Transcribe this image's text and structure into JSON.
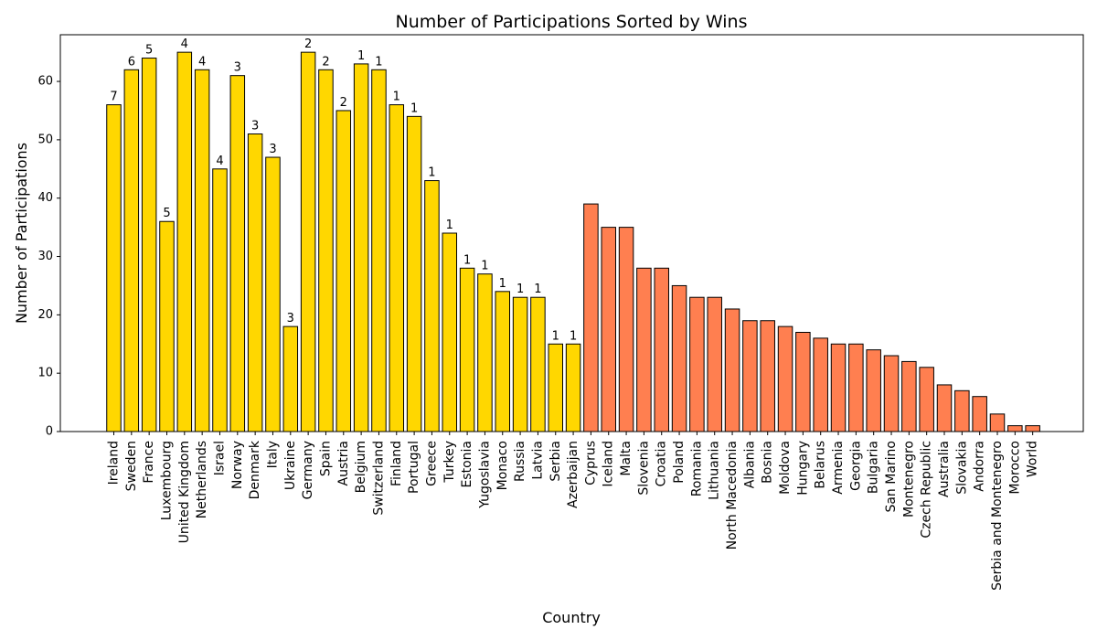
{
  "chart_data": {
    "type": "bar",
    "title": "Number of Participations Sorted by Wins",
    "xlabel": "Country",
    "ylabel": "Number of Participations",
    "ylim": [
      0,
      68
    ],
    "yticks": [
      0,
      10,
      20,
      30,
      40,
      50,
      60
    ],
    "grid": false,
    "colors": {
      "winners": "#FFD700",
      "non_winners": "#FF7F50",
      "edge": "#000000"
    },
    "categories": [
      "Ireland",
      "Sweden",
      "France",
      "Luxembourg",
      "United Kingdom",
      "Netherlands",
      "Israel",
      "Norway",
      "Denmark",
      "Italy",
      "Ukraine",
      "Germany",
      "Spain",
      "Austria",
      "Belgium",
      "Switzerland",
      "Finland",
      "Portugal",
      "Greece",
      "Turkey",
      "Estonia",
      "Yugoslavia",
      "Monaco",
      "Russia",
      "Latvia",
      "Serbia",
      "Azerbaijan",
      "Cyprus",
      "Iceland",
      "Malta",
      "Slovenia",
      "Croatia",
      "Poland",
      "Romania",
      "Lithuania",
      "North Macedonia",
      "Albania",
      "Bosnia",
      "Moldova",
      "Hungary",
      "Belarus",
      "Armenia",
      "Georgia",
      "Bulgaria",
      "San Marino",
      "Montenegro",
      "Czech Republic",
      "Australia",
      "Slovakia",
      "Andorra",
      "Serbia and Montenegro",
      "Morocco",
      "World"
    ],
    "values": [
      56,
      62,
      64,
      36,
      65,
      62,
      45,
      61,
      51,
      47,
      18,
      65,
      62,
      55,
      63,
      62,
      56,
      54,
      43,
      34,
      28,
      27,
      24,
      23,
      23,
      15,
      15,
      39,
      35,
      35,
      28,
      28,
      25,
      23,
      23,
      21,
      19,
      19,
      18,
      17,
      16,
      15,
      15,
      14,
      13,
      12,
      11,
      8,
      7,
      6,
      3,
      1,
      1
    ],
    "wins": [
      7,
      6,
      5,
      5,
      4,
      4,
      4,
      3,
      3,
      3,
      3,
      2,
      2,
      2,
      1,
      1,
      1,
      1,
      1,
      1,
      1,
      1,
      1,
      1,
      1,
      1,
      1,
      0,
      0,
      0,
      0,
      0,
      0,
      0,
      0,
      0,
      0,
      0,
      0,
      0,
      0,
      0,
      0,
      0,
      0,
      0,
      0,
      0,
      0,
      0,
      0,
      0,
      0
    ]
  }
}
